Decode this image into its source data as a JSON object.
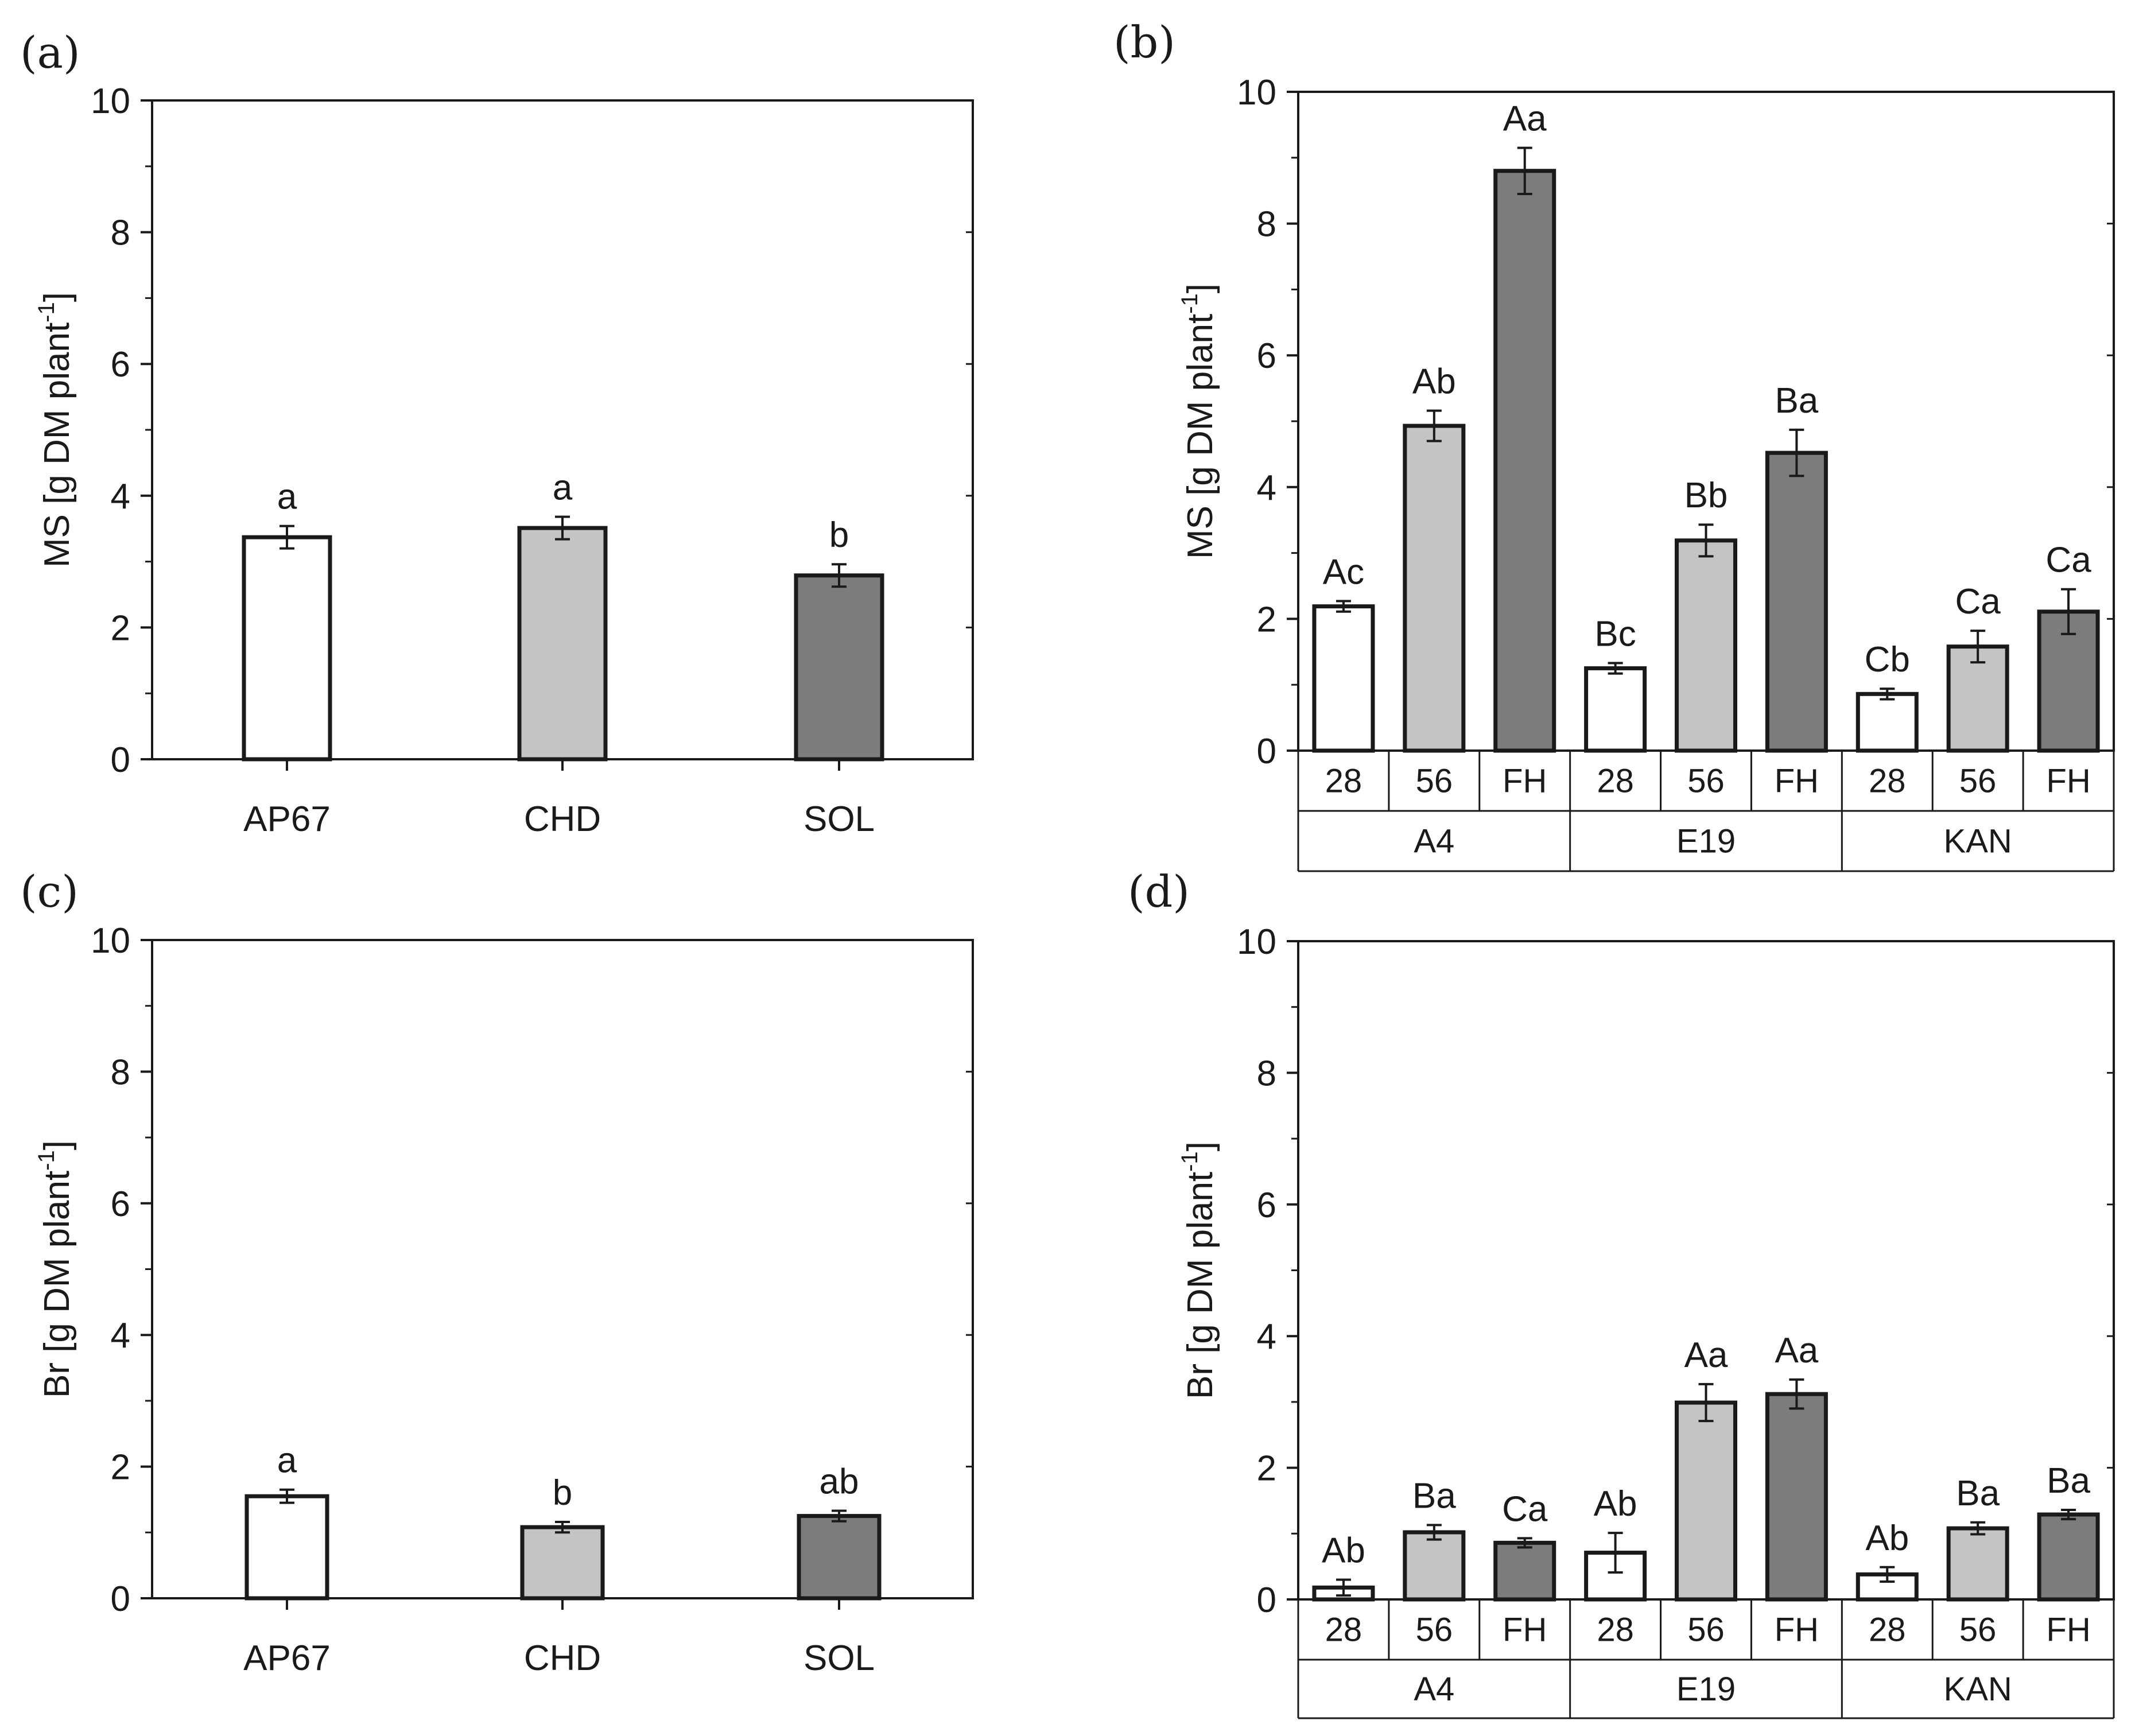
{
  "colors": {
    "fill_28": "#ffffff",
    "fill_56": "#c4c4c4",
    "fill_FH": "#7c7c7c",
    "stroke": "#1a1a1a"
  },
  "chart_data": [
    {
      "panel": "(a)",
      "type": "bar",
      "ylabel_main": "MS [g DM plant",
      "ylabel_sup": "-1",
      "ylabel_close": "]",
      "ylim": [
        0,
        10
      ],
      "yticks": [
        0,
        2,
        4,
        6,
        8,
        10
      ],
      "categories": [
        "AP67",
        "CHD",
        "SOL"
      ],
      "values": [
        3.37,
        3.51,
        2.79
      ],
      "errors": [
        0.17,
        0.17,
        0.17
      ],
      "letters": [
        "a",
        "a",
        "b"
      ],
      "fill_keys": [
        "fill_28",
        "fill_56",
        "fill_FH"
      ]
    },
    {
      "panel": "(b)",
      "type": "bar",
      "ylabel_main": "MS [g DM plant",
      "ylabel_sup": "-1",
      "ylabel_close": "]",
      "ylim": [
        0,
        10
      ],
      "yticks": [
        0,
        2,
        4,
        6,
        8,
        10
      ],
      "groups": [
        {
          "name": "A4",
          "subs": [
            "28",
            "56",
            "FH"
          ],
          "values": [
            2.19,
            4.93,
            8.8
          ],
          "errors": [
            0.08,
            0.23,
            0.35
          ],
          "letters": [
            "Ac",
            "Ab",
            "Aa"
          ]
        },
        {
          "name": "E19",
          "subs": [
            "28",
            "56",
            "FH"
          ],
          "values": [
            1.25,
            3.19,
            4.52
          ],
          "errors": [
            0.08,
            0.24,
            0.35
          ],
          "letters": [
            "Bc",
            "Bb",
            "Ba"
          ]
        },
        {
          "name": "KAN",
          "subs": [
            "28",
            "56",
            "FH"
          ],
          "values": [
            0.86,
            1.58,
            2.11
          ],
          "errors": [
            0.08,
            0.24,
            0.34
          ],
          "letters": [
            "Cb",
            "Ca",
            "Ca"
          ]
        }
      ],
      "fill_keys": [
        "fill_28",
        "fill_56",
        "fill_FH"
      ]
    },
    {
      "panel": "(c)",
      "type": "bar",
      "ylabel_main": "Br [g DM plant",
      "ylabel_sup": "-1",
      "ylabel_close": "]",
      "ylim": [
        0,
        10
      ],
      "yticks": [
        0,
        2,
        4,
        6,
        8,
        10
      ],
      "categories": [
        "AP67",
        "CHD",
        "SOL"
      ],
      "values": [
        1.55,
        1.08,
        1.25
      ],
      "errors": [
        0.1,
        0.08,
        0.08
      ],
      "letters": [
        "a",
        "b",
        "ab"
      ],
      "fill_keys": [
        "fill_28",
        "fill_56",
        "fill_FH"
      ]
    },
    {
      "panel": "(d)",
      "type": "bar",
      "ylabel_main": "Br [g DM plant",
      "ylabel_sup": "-1",
      "ylabel_close": "]",
      "ylim": [
        0,
        10
      ],
      "yticks": [
        0,
        2,
        4,
        6,
        8,
        10
      ],
      "groups": [
        {
          "name": "A4",
          "subs": [
            "28",
            "56",
            "FH"
          ],
          "values": [
            0.18,
            1.02,
            0.86
          ],
          "errors": [
            0.12,
            0.11,
            0.07
          ],
          "letters": [
            "Ab",
            "Ba",
            "Ca"
          ]
        },
        {
          "name": "E19",
          "subs": [
            "28",
            "56",
            "FH"
          ],
          "values": [
            0.71,
            2.99,
            3.12
          ],
          "errors": [
            0.3,
            0.28,
            0.22
          ],
          "letters": [
            "Ab",
            "Aa",
            "Aa"
          ]
        },
        {
          "name": "KAN",
          "subs": [
            "28",
            "56",
            "FH"
          ],
          "values": [
            0.38,
            1.08,
            1.29
          ],
          "errors": [
            0.11,
            0.09,
            0.07
          ],
          "letters": [
            "Ab",
            "Ba",
            "Ba"
          ]
        }
      ],
      "fill_keys": [
        "fill_28",
        "fill_56",
        "fill_FH"
      ]
    }
  ]
}
